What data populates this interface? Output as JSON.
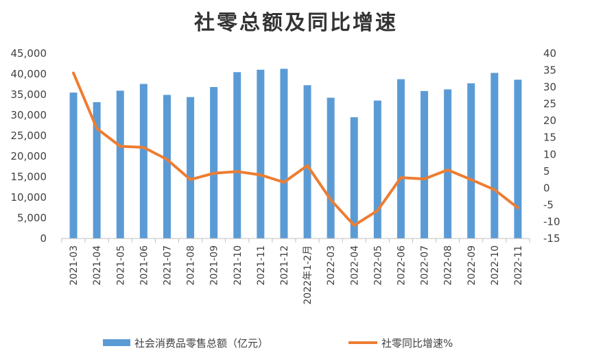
{
  "chart_data": {
    "type": "bar+line",
    "title": "社零总额及同比增速",
    "categories": [
      "2021-03",
      "2021-04",
      "2021-05",
      "2021-06",
      "2021-07",
      "2021-08",
      "2021-09",
      "2021-10",
      "2021-11",
      "2021-12",
      "2022年1-2月",
      "2022-03",
      "2022-04",
      "2022-05",
      "2022-06",
      "2022-07",
      "2022-08",
      "2022-09",
      "2022-10",
      "2022-11"
    ],
    "series": [
      {
        "name": "社会消费品零售总额（亿元）",
        "type": "bar",
        "axis": "left",
        "color": "#5B9BD5",
        "values": [
          35484,
          33153,
          35945,
          37586,
          34925,
          34395,
          36833,
          40454,
          41043,
          41269,
          37280,
          34233,
          29483,
          33547,
          38742,
          35870,
          36258,
          37745,
          40271,
          38615
        ]
      },
      {
        "name": "社零同比增速%",
        "type": "line",
        "axis": "right",
        "color": "#ED7D31",
        "values": [
          34.2,
          17.7,
          12.4,
          12.1,
          8.5,
          2.5,
          4.4,
          4.9,
          3.9,
          1.7,
          6.7,
          -3.5,
          -11.1,
          -6.7,
          3.1,
          2.7,
          5.4,
          2.5,
          -0.5,
          -5.9
        ]
      }
    ],
    "y_left": {
      "min": 0,
      "max": 45000,
      "step": 5000,
      "tick_labels": [
        "0",
        "5,000",
        "10,000",
        "15,000",
        "20,000",
        "25,000",
        "30,000",
        "35,000",
        "40,000",
        "45,000"
      ]
    },
    "y_right": {
      "min": -15,
      "max": 40,
      "step": 5,
      "tick_labels": [
        "-15",
        "-10",
        "-5",
        "0",
        "5",
        "10",
        "15",
        "20",
        "25",
        "30",
        "35",
        "40"
      ]
    },
    "grid": false,
    "legend": "bottom"
  }
}
